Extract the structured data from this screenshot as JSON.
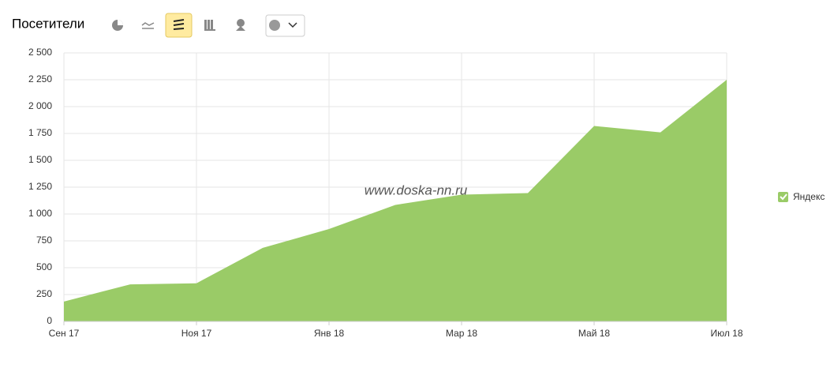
{
  "chart_data": {
    "type": "area",
    "title": "Посетители",
    "annotation": "www.doska-nn.ru",
    "categories": [
      "Сен 17",
      null,
      "Ноя 17",
      null,
      "Янв 18",
      null,
      "Мар 18",
      null,
      "Май 18",
      null,
      "Июл 18"
    ],
    "series": [
      {
        "name": "Яндекс",
        "color": "#9acb67",
        "values": [
          185,
          345,
          355,
          685,
          860,
          1085,
          1180,
          1195,
          1820,
          1760,
          2250
        ]
      }
    ],
    "ylim": [
      0,
      2500
    ],
    "yticks": [
      0,
      250,
      500,
      750,
      {
        "value": 1000,
        "label": "1 000"
      },
      {
        "value": 1250,
        "label": "1 250"
      },
      {
        "value": 1500,
        "label": "1 500"
      },
      {
        "value": 1750,
        "label": "1 750"
      },
      {
        "value": 2000,
        "label": "2 000"
      },
      {
        "value": 2250,
        "label": "2 250"
      },
      {
        "value": 2500,
        "label": "2 500"
      }
    ],
    "grid": true,
    "legend": "right"
  }
}
